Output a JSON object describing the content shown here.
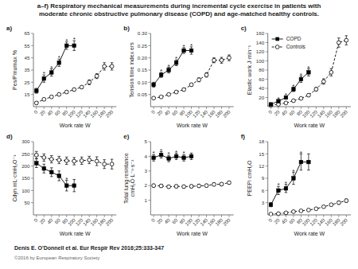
{
  "title": "a–f) Respiratory mechanical measurements during incremental cycle exercise in patients with\nmoderate chronic obstructive pulmonary disease (COPD) and age-matched healthy controls.",
  "annotations": [
    "Denis E. O'Donnell et al. Eur Respir Rev 2016;25:333-347",
    "©2016 by European Respiratory Society"
  ],
  "chart_data": [
    {
      "type": "line",
      "title": "a)",
      "xlabel": "Work rate W",
      "ylabel": "Pes/Pmumax %",
      "xlim": [
        -8,
        212
      ],
      "xticks": [
        0,
        20,
        40,
        60,
        80,
        100,
        120,
        140,
        160,
        180,
        200
      ],
      "ylim": [
        5,
        65
      ],
      "yticks": [
        15,
        25,
        35,
        45,
        55,
        65
      ],
      "grid": false,
      "series": [
        {
          "name": "COPD",
          "color": "black",
          "marker": "square",
          "line_style": "solid",
          "x": [
            0,
            20,
            40,
            60,
            80,
            100
          ],
          "values": [
            18,
            28,
            33,
            41,
            55,
            55
          ],
          "errors": [
            2,
            3,
            3,
            3,
            3,
            4
          ],
          "significant": [
            false,
            true,
            true,
            true,
            true,
            true
          ],
          "significance_label": "*"
        },
        {
          "name": "Controls",
          "color": "black",
          "marker": "open_circle",
          "line_style": "dashed",
          "x": [
            0,
            20,
            40,
            60,
            80,
            100,
            120,
            140,
            160,
            180,
            200
          ],
          "values": [
            8,
            11,
            13,
            15,
            17,
            19,
            21,
            25,
            30,
            38,
            38
          ],
          "errors": [
            1,
            1,
            1,
            1,
            1,
            1,
            1,
            2,
            2,
            3,
            3
          ]
        }
      ]
    },
    {
      "type": "line",
      "title": "b)",
      "xlabel": "Work rate W",
      "ylabel": "Tension time index ers",
      "xlim": [
        -8,
        212
      ],
      "xticks": [
        0,
        20,
        40,
        60,
        80,
        100,
        120,
        140,
        160,
        180,
        200
      ],
      "ylim": [
        0,
        0.3
      ],
      "yticks": [
        0.05,
        {
          "value": 0.1,
          "label": "0.10"
        },
        0.15,
        {
          "value": 0.2,
          "label": "0.20"
        },
        0.25,
        {
          "value": 0.3,
          "label": "0.30"
        }
      ],
      "grid": false,
      "series": [
        {
          "name": "COPD",
          "color": "black",
          "marker": "square",
          "line_style": "solid",
          "x": [
            0,
            20,
            40,
            60,
            80,
            100
          ],
          "values": [
            0.09,
            0.13,
            0.15,
            0.18,
            0.23,
            0.23
          ],
          "errors": [
            0.01,
            0.01,
            0.012,
            0.012,
            0.012,
            0.015
          ],
          "significant": [
            false,
            true,
            true,
            true,
            true,
            true
          ],
          "significance_label": "*"
        },
        {
          "name": "Controls",
          "color": "black",
          "marker": "open_circle",
          "line_style": "dashed",
          "x": [
            0,
            20,
            40,
            60,
            80,
            100,
            120,
            140,
            160,
            180,
            200
          ],
          "values": [
            0.035,
            0.04,
            0.05,
            0.06,
            0.07,
            0.09,
            0.11,
            0.13,
            0.19,
            0.19,
            0.2
          ],
          "errors": [
            0.004,
            0.004,
            0.004,
            0.004,
            0.005,
            0.006,
            0.008,
            0.009,
            0.01,
            0.012,
            0.012
          ]
        }
      ]
    },
    {
      "type": "line",
      "title": "c)",
      "xlabel": "Work rate W",
      "ylabel": "Elastic work J·min⁻¹",
      "xlim": [
        -8,
        212
      ],
      "xticks": [
        0,
        20,
        40,
        60,
        80,
        100,
        120,
        140,
        160,
        180,
        200
      ],
      "ylim": [
        0,
        160
      ],
      "yticks": [
        20,
        40,
        60,
        80,
        100,
        120,
        140,
        160
      ],
      "grid": false,
      "legend": "upper left",
      "series": [
        {
          "name": "COPD",
          "color": "black",
          "marker": "square",
          "line_style": "solid",
          "x": [
            0,
            20,
            40,
            60,
            80,
            100
          ],
          "values": [
            5,
            12,
            20,
            38,
            60,
            75
          ],
          "errors": [
            2,
            2,
            3,
            5,
            7,
            8
          ],
          "significant": [
            false,
            true,
            true,
            true,
            true,
            true
          ],
          "significance_label": "*"
        },
        {
          "name": "Controls",
          "color": "black",
          "marker": "open_circle",
          "line_style": "dashed",
          "x": [
            0,
            20,
            40,
            60,
            80,
            100,
            120,
            140,
            160,
            180,
            200
          ],
          "values": [
            3,
            5,
            8,
            13,
            18,
            25,
            38,
            55,
            75,
            140,
            145
          ],
          "errors": [
            1,
            1,
            1,
            2,
            2,
            3,
            4,
            6,
            8,
            10,
            10
          ]
        }
      ]
    },
    {
      "type": "line",
      "title": "d)",
      "xlabel": "Work rate W",
      "ylabel": "Cdyn mL·cmH₂O⁻¹",
      "xlim": [
        -8,
        212
      ],
      "xticks": [
        0,
        20,
        40,
        60,
        80,
        100,
        120,
        140,
        160,
        180,
        200
      ],
      "ylim": [
        0,
        300
      ],
      "yticks": [
        50,
        100,
        150,
        200,
        250,
        300
      ],
      "grid": false,
      "series": [
        {
          "name": "COPD",
          "color": "black",
          "marker": "square",
          "line_style": "solid",
          "x": [
            0,
            20,
            40,
            60,
            80,
            100
          ],
          "values": [
            212,
            190,
            175,
            160,
            120,
            120
          ],
          "errors": [
            18,
            18,
            18,
            20,
            22,
            25
          ],
          "significant": [
            false,
            false,
            false,
            false,
            true,
            false
          ],
          "significance_label": "*"
        },
        {
          "name": "Controls",
          "color": "black",
          "marker": "open_circle",
          "line_style": "dashed",
          "x": [
            0,
            20,
            40,
            60,
            80,
            100,
            120,
            140,
            160,
            180,
            200
          ],
          "values": [
            245,
            235,
            228,
            225,
            222,
            220,
            222,
            225,
            220,
            208,
            208
          ],
          "errors": [
            15,
            15,
            15,
            15,
            15,
            15,
            15,
            15,
            18,
            18,
            20
          ]
        }
      ]
    },
    {
      "type": "line",
      "title": "e)",
      "xlabel": "Work rate W",
      "ylabel": "Total lung resistance\ncmH₂O·L⁻¹·s⁻¹",
      "xlim": [
        -8,
        212
      ],
      "xticks": [
        0,
        20,
        40,
        60,
        80,
        100,
        120,
        140,
        160,
        180,
        200
      ],
      "ylim": [
        0,
        5
      ],
      "yticks": [
        1,
        2,
        3,
        4,
        5
      ],
      "grid": false,
      "series": [
        {
          "name": "COPD",
          "color": "black",
          "marker": "square",
          "line_style": "solid",
          "x": [
            0,
            20,
            40,
            60,
            80,
            100
          ],
          "values": [
            3.9,
            4.1,
            3.85,
            4.0,
            3.9,
            4.0
          ],
          "errors": [
            0.22,
            0.22,
            0.22,
            0.22,
            0.22,
            0.22
          ],
          "significant": [
            true,
            true,
            true,
            true,
            true,
            false
          ],
          "significance_label": "*"
        },
        {
          "name": "Controls",
          "color": "black",
          "marker": "open_circle",
          "line_style": "dashed",
          "x": [
            0,
            20,
            40,
            60,
            80,
            100,
            120,
            140,
            160,
            180,
            200
          ],
          "values": [
            2.0,
            1.98,
            1.92,
            1.95,
            1.93,
            1.95,
            1.98,
            2.0,
            2.08,
            2.1,
            2.2
          ],
          "errors": [
            0.1,
            0.1,
            0.1,
            0.1,
            0.1,
            0.1,
            0.1,
            0.1,
            0.1,
            0.1,
            0.1
          ]
        }
      ]
    },
    {
      "type": "line",
      "title": "f)",
      "xlabel": "Work rate W",
      "ylabel": "PEEPi cmH₂O",
      "xlim": [
        -8,
        212
      ],
      "xticks": [
        0,
        20,
        40,
        60,
        80,
        100,
        120,
        140,
        160,
        180,
        200
      ],
      "ylim": [
        0,
        18
      ],
      "yticks": [
        3,
        6,
        9,
        12,
        15,
        18
      ],
      "grid": false,
      "series": [
        {
          "name": "COPD",
          "color": "black",
          "marker": "square",
          "line_style": "solid",
          "x": [
            0,
            20,
            40,
            60,
            80,
            100
          ],
          "values": [
            2.5,
            6.0,
            6.5,
            9.0,
            13.0,
            13.0
          ],
          "errors": [
            0.5,
            1.0,
            1.0,
            1.5,
            2.0,
            2.0
          ],
          "significant": [
            false,
            true,
            true,
            true,
            true,
            false
          ],
          "significance_label": "*"
        },
        {
          "name": "Controls",
          "color": "black",
          "marker": "open_circle",
          "line_style": "dashed",
          "x": [
            0,
            20,
            40,
            60,
            80,
            100,
            120,
            140,
            160,
            180,
            200
          ],
          "values": [
            0.2,
            0.3,
            0.5,
            0.8,
            1.0,
            1.2,
            1.5,
            2.0,
            2.5,
            3.0,
            3.5
          ],
          "errors": [
            0.1,
            0.1,
            0.1,
            0.1,
            0.1,
            0.1,
            0.2,
            0.2,
            0.3,
            0.4,
            0.4
          ]
        }
      ]
    }
  ]
}
